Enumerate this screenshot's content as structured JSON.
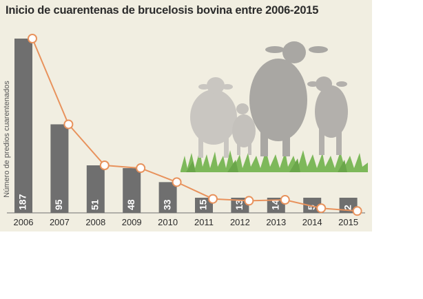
{
  "chart_data": {
    "type": "bar",
    "title": "Inicio de cuarentenas de brucelosis bovina entre 2006-2015",
    "xlabel": "",
    "ylabel": "Número de predios cuarentenados",
    "categories": [
      "2006",
      "2007",
      "2008",
      "2009",
      "2010",
      "2011",
      "2012",
      "2013",
      "2014",
      "2015"
    ],
    "values": [
      187,
      95,
      51,
      48,
      33,
      15,
      13,
      14,
      5,
      2
    ],
    "ylim": [
      0,
      195
    ],
    "overlay_line": true,
    "grid": false,
    "legend": "none"
  },
  "colors": {
    "background": "#f1eee1",
    "bar": "#6f6f6f",
    "bar_label": "#ffffff",
    "line": "#e8925c",
    "marker_fill": "#ffffff",
    "cow_silhouette": "#b0aeaa",
    "grass": "#7db85a",
    "text": "#2b2b2b"
  },
  "illustration": "cow-herd-on-grass"
}
